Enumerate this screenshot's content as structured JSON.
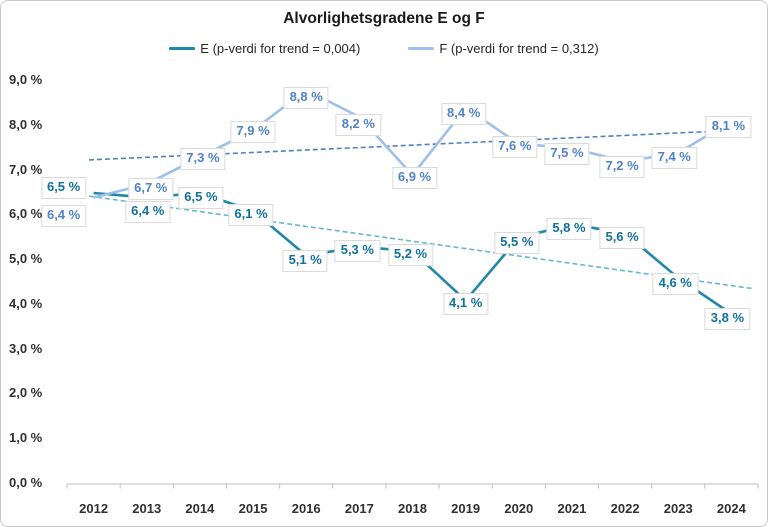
{
  "chart_data": {
    "type": "line",
    "title": "Alvorlighetsgradene E og F",
    "categories": [
      "2012",
      "2013",
      "2014",
      "2015",
      "2016",
      "2017",
      "2018",
      "2019",
      "2020",
      "2021",
      "2022",
      "2023",
      "2024"
    ],
    "y_axis": {
      "tick_labels": [
        "0,0 %",
        "1,0 %",
        "2,0 %",
        "3,0 %",
        "4,0 %",
        "5,0 %",
        "6,0 %",
        "7,0 %",
        "8,0 %",
        "9,0 %"
      ],
      "min": 0,
      "max": 9
    },
    "grid": false,
    "legend_position": "top",
    "axis_color": "#bfbfbf",
    "series": [
      {
        "name": "E (p-verdi for trend = 0,004)",
        "values": [
          6.5,
          6.4,
          6.5,
          6.1,
          5.1,
          5.3,
          5.2,
          4.1,
          5.5,
          5.8,
          5.6,
          4.6,
          3.8
        ],
        "labels": [
          "6,5 %",
          "6,4 %",
          "6,5 %",
          "6,1 %",
          "5,1 %",
          "5,3 %",
          "5,2 %",
          "4,1 %",
          "5,5 %",
          "5,8 %",
          "5,6 %",
          "4,6 %",
          "3,8 %"
        ],
        "color": "#2187a8",
        "label_color": "#11719d",
        "trendline": {
          "style": "dashed",
          "color": "#63b8d2"
        },
        "label_offsets": [
          [
            -30,
            -5
          ],
          [
            1,
            15
          ],
          [
            1,
            5
          ],
          [
            -2,
            4
          ],
          [
            -1,
            5
          ],
          [
            -2,
            4
          ],
          [
            -2,
            4
          ],
          [
            0,
            4
          ],
          [
            -2,
            5
          ],
          [
            -3,
            5
          ],
          [
            -3,
            5
          ],
          [
            -3,
            6
          ],
          [
            -4,
            5
          ]
        ]
      },
      {
        "name": "F (p-verdi for trend = 0,312)",
        "values": [
          6.4,
          6.7,
          7.3,
          7.9,
          8.8,
          8.2,
          6.9,
          8.4,
          7.6,
          7.5,
          7.2,
          7.4,
          8.1
        ],
        "labels": [
          "6,4 %",
          "6,7 %",
          "7,3 %",
          "7,9 %",
          "8,8 %",
          "8,2 %",
          "6,9 %",
          "8,4 %",
          "7,6 %",
          "7,5 %",
          "7,2 %",
          "7,4 %",
          "8,1 %"
        ],
        "color": "#9ebfe8",
        "label_color": "#5182c8",
        "trendline": {
          "style": "dashed",
          "color": "#4f81bd"
        },
        "label_offsets": [
          [
            -30,
            19
          ],
          [
            4,
            5
          ],
          [
            3,
            2
          ],
          [
            0,
            2
          ],
          [
            0,
            8
          ],
          [
            -1,
            8
          ],
          [
            2,
            3
          ],
          [
            -2,
            6
          ],
          [
            -4,
            3
          ],
          [
            -5,
            6
          ],
          [
            -3,
            5
          ],
          [
            -4,
            5
          ],
          [
            -3,
            6
          ]
        ]
      }
    ]
  }
}
